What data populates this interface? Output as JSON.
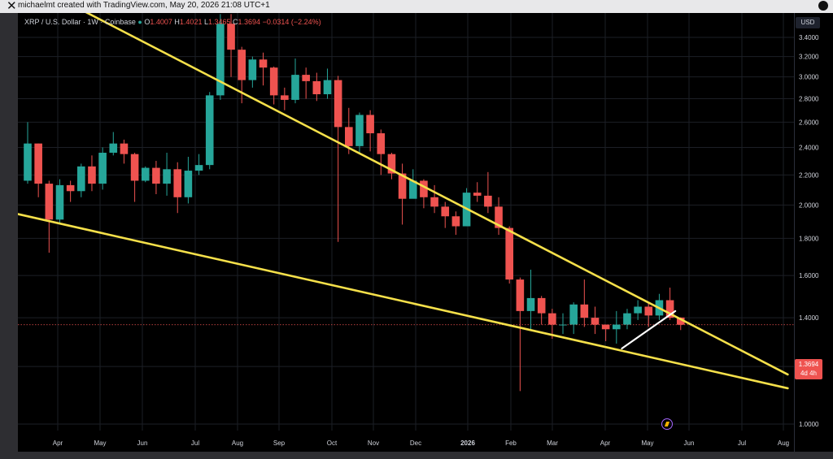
{
  "header": {
    "close_glyph": "✕",
    "credit": "michaelmt created with TradingView.com, May 20, 2026 21:08 UTC+1"
  },
  "legend": {
    "symbol": "XRP / U.S. Dollar · 1W · Coinbase",
    "open_label": "O",
    "open": "1.4007",
    "high_label": "H",
    "high": "1.4021",
    "low_label": "L",
    "low": "1.3465",
    "close_label": "C",
    "close": "1.3694",
    "change": "−0.0314 (−2.24%)"
  },
  "axis": {
    "currency": "USD",
    "last_price": "1.3694",
    "countdown": "4d 4h"
  },
  "colors": {
    "up": "#26a69a",
    "down": "#ef5350",
    "trendline": "#f5e04a",
    "grid": "#1c1f26",
    "text": "#d1d4dc",
    "white_line": "#ffffff"
  },
  "chart_data": {
    "type": "candlestick",
    "title": "XRP / U.S. Dollar · 1W · Coinbase",
    "x_ticks": [
      "Apr",
      "May",
      "Jun",
      "Jul",
      "Aug",
      "Sep",
      "Oct",
      "Nov",
      "Dec",
      "2026",
      "Feb",
      "Mar",
      "Apr",
      "May",
      "Jun",
      "Jul",
      "Aug"
    ],
    "y_ticks": [
      "1.0000",
      "1.2000",
      "1.4000",
      "1.6000",
      "1.8000",
      "2.0000",
      "2.2000",
      "2.4000",
      "2.6000",
      "2.8000",
      "3.0000",
      "3.2000",
      "3.4000"
    ],
    "ylim": [
      0.92,
      3.47
    ],
    "scale": "log",
    "grid": true,
    "candles": [
      [
        2.16,
        2.43,
        2.6,
        2.14
      ],
      [
        2.43,
        2.14,
        2.43,
        2.05
      ],
      [
        2.14,
        1.91,
        2.16,
        1.72
      ],
      [
        1.91,
        2.13,
        2.17,
        1.88
      ],
      [
        2.13,
        2.09,
        2.16,
        2.02
      ],
      [
        2.09,
        2.26,
        2.28,
        2.05
      ],
      [
        2.26,
        2.14,
        2.34,
        2.09
      ],
      [
        2.14,
        2.36,
        2.4,
        2.1
      ],
      [
        2.36,
        2.43,
        2.52,
        2.34
      ],
      [
        2.43,
        2.35,
        2.46,
        2.28
      ],
      [
        2.35,
        2.16,
        2.36,
        2.02
      ],
      [
        2.16,
        2.25,
        2.26,
        2.15
      ],
      [
        2.25,
        2.14,
        2.3,
        2.07
      ],
      [
        2.14,
        2.24,
        2.36,
        2.06
      ],
      [
        2.24,
        2.05,
        2.29,
        1.95
      ],
      [
        2.05,
        2.23,
        2.33,
        2.01
      ],
      [
        2.23,
        2.27,
        2.35,
        2.2
      ],
      [
        2.27,
        2.83,
        2.86,
        2.24
      ],
      [
        2.83,
        3.55,
        3.66,
        2.79
      ],
      [
        3.55,
        3.27,
        3.66,
        3.0
      ],
      [
        3.27,
        2.97,
        3.3,
        2.76
      ],
      [
        2.97,
        3.17,
        3.2,
        2.9
      ],
      [
        3.17,
        3.09,
        3.24,
        2.92
      ],
      [
        3.09,
        2.83,
        3.1,
        2.75
      ],
      [
        2.83,
        2.79,
        2.9,
        2.7
      ],
      [
        2.79,
        3.02,
        3.18,
        2.76
      ],
      [
        3.02,
        2.96,
        3.09,
        2.8
      ],
      [
        2.96,
        2.84,
        3.04,
        2.78
      ],
      [
        2.84,
        2.97,
        3.08,
        2.8
      ],
      [
        2.97,
        2.56,
        3.01,
        1.78
      ],
      [
        2.56,
        2.41,
        2.72,
        2.35
      ],
      [
        2.41,
        2.66,
        2.68,
        2.35
      ],
      [
        2.66,
        2.51,
        2.7,
        2.37
      ],
      [
        2.51,
        2.35,
        2.54,
        2.2
      ],
      [
        2.35,
        2.21,
        2.36,
        2.17
      ],
      [
        2.21,
        2.04,
        2.28,
        1.88
      ],
      [
        2.04,
        2.16,
        2.24,
        2.05
      ],
      [
        2.16,
        2.05,
        2.17,
        1.98
      ],
      [
        2.05,
        1.99,
        2.13,
        1.95
      ],
      [
        1.99,
        1.93,
        2.02,
        1.86
      ],
      [
        1.93,
        1.87,
        1.96,
        1.82
      ],
      [
        1.87,
        2.08,
        2.11,
        1.87
      ],
      [
        2.08,
        2.06,
        2.15,
        2.02
      ],
      [
        2.06,
        1.99,
        2.22,
        1.95
      ],
      [
        1.99,
        1.86,
        2.05,
        1.82
      ],
      [
        1.86,
        1.58,
        1.87,
        1.56
      ],
      [
        1.58,
        1.43,
        1.59,
        1.11
      ],
      [
        1.43,
        1.49,
        1.63,
        1.35
      ],
      [
        1.49,
        1.42,
        1.5,
        1.37
      ],
      [
        1.42,
        1.37,
        1.44,
        1.31
      ],
      [
        1.37,
        1.37,
        1.42,
        1.33
      ],
      [
        1.37,
        1.46,
        1.47,
        1.33
      ],
      [
        1.46,
        1.4,
        1.58,
        1.36
      ],
      [
        1.4,
        1.37,
        1.45,
        1.33
      ],
      [
        1.37,
        1.35,
        1.37,
        1.3
      ],
      [
        1.35,
        1.37,
        1.43,
        1.29
      ],
      [
        1.37,
        1.42,
        1.44,
        1.35
      ],
      [
        1.42,
        1.45,
        1.48,
        1.39
      ],
      [
        1.45,
        1.41,
        1.47,
        1.36
      ],
      [
        1.41,
        1.48,
        1.51,
        1.39
      ],
      [
        1.48,
        1.4,
        1.54,
        1.39
      ],
      [
        1.4007,
        1.3694,
        1.4021,
        1.3465
      ]
    ],
    "trendlines": [
      {
        "name": "upper",
        "points": [
          [
            0,
            4.05
          ],
          [
            71,
            1.17
          ]
        ]
      },
      {
        "name": "lower",
        "points": [
          [
            -2,
            1.96
          ],
          [
            71,
            1.12
          ]
        ]
      },
      {
        "name": "white",
        "points": [
          [
            55.5,
            1.27
          ],
          [
            60.5,
            1.43
          ]
        ]
      }
    ]
  }
}
